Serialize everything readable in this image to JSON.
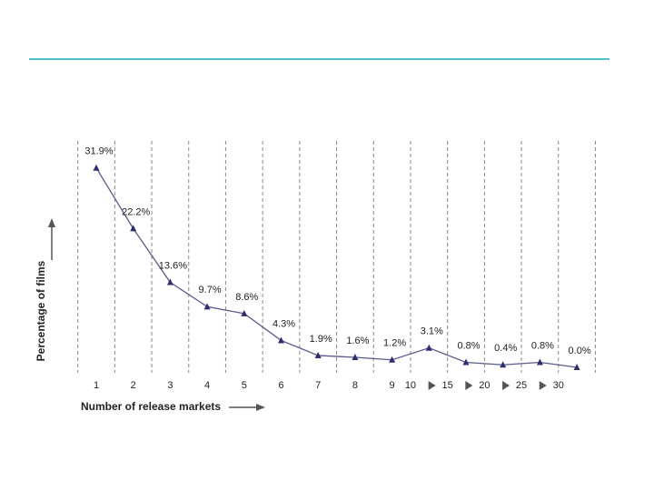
{
  "chart_data": {
    "type": "line",
    "x_label": "Number of release markets",
    "y_label": "Percentage of films",
    "categories": [
      "1",
      "2",
      "3",
      "4",
      "5",
      "6",
      "7",
      "8",
      "9",
      null,
      null,
      null,
      null,
      null
    ],
    "boundary_labels": [
      "10",
      "15",
      "20",
      "25",
      "30"
    ],
    "values": [
      31.9,
      22.2,
      13.6,
      9.7,
      8.6,
      4.3,
      1.9,
      1.6,
      1.2,
      3.1,
      0.8,
      0.4,
      0.8,
      0.0
    ],
    "value_labels": [
      "31.9%",
      "22.2%",
      "13.6%",
      "9.7%",
      "8.6%",
      "4.3%",
      "1.9%",
      "1.6%",
      "1.2%",
      "3.1%",
      "0.8%",
      "0.4%",
      "0.8%",
      "0.0%"
    ],
    "color": "#2e2e6e",
    "ylim": [
      0,
      32
    ]
  }
}
